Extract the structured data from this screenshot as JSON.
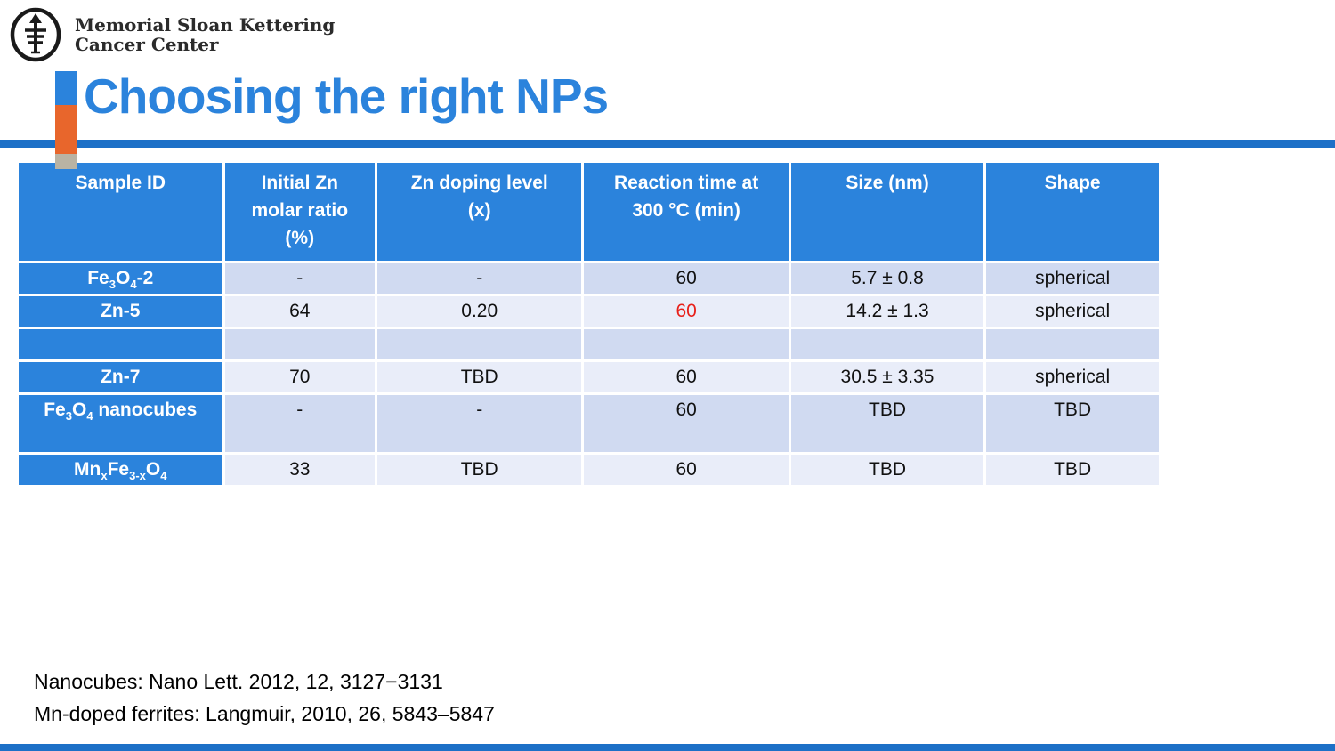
{
  "slide": {
    "logo": {
      "line1": "Memorial Sloan Kettering",
      "line2": "Cancer Center"
    },
    "title": "Choosing the right NPs",
    "colors": {
      "theme_blue": "#2b83dc",
      "rule_blue": "#1d70c7",
      "accent_orange": "#e8662c",
      "accent_gray": "#b9b3a4",
      "row_dark": "#d0daf1",
      "row_light": "#e9edf9",
      "highlight_red": "#e8201a",
      "text_black": "#111111"
    }
  },
  "table": {
    "headers": [
      {
        "lines": [
          "Sample ID"
        ]
      },
      {
        "lines": [
          "Initial Zn",
          "molar ratio",
          "(%)"
        ]
      },
      {
        "lines": [
          "Zn doping level",
          "(x)"
        ]
      },
      {
        "lines": [
          "Reaction time at",
          "300 °C (min)"
        ]
      },
      {
        "lines": [
          "Size (nm)"
        ]
      },
      {
        "lines": [
          "Shape"
        ]
      }
    ],
    "rows": [
      {
        "sample_parts": [
          {
            "t": "Fe"
          },
          {
            "t": "3",
            "sub": true
          },
          {
            "t": "O"
          },
          {
            "t": "4",
            "sub": true
          },
          {
            "t": "-2"
          }
        ],
        "initial_zn": "-",
        "doping": "-",
        "time": "60",
        "time_red": false,
        "size": "5.7 ± 0.8",
        "shape": "spherical",
        "band": "dark",
        "tall": false
      },
      {
        "sample_parts": [
          {
            "t": "Zn-5"
          }
        ],
        "initial_zn": "64",
        "doping": "0.20",
        "time": "60",
        "time_red": true,
        "size": "14.2 ± 1.3",
        "shape": "spherical",
        "band": "light",
        "tall": false
      },
      {
        "sample_parts": [],
        "initial_zn": "",
        "doping": "",
        "time": "",
        "time_red": false,
        "size": "",
        "shape": "",
        "band": "dark",
        "tall": false
      },
      {
        "sample_parts": [
          {
            "t": "Zn-7"
          }
        ],
        "initial_zn": "70",
        "doping": "TBD",
        "time": "60",
        "time_red": false,
        "size": "30.5 ± 3.35",
        "shape": "spherical",
        "band": "light",
        "tall": false
      },
      {
        "sample_parts": [
          {
            "t": "Fe"
          },
          {
            "t": "3",
            "sub": true
          },
          {
            "t": "O"
          },
          {
            "t": "4",
            "sub": true
          },
          {
            "t": " nanocubes"
          }
        ],
        "initial_zn": "-",
        "doping": "-",
        "time": "60",
        "time_red": false,
        "size": "TBD",
        "shape": "TBD",
        "band": "dark",
        "tall": true
      },
      {
        "sample_parts": [
          {
            "t": "Mn"
          },
          {
            "t": "x",
            "sub": true
          },
          {
            "t": "Fe"
          },
          {
            "t": "3-x",
            "sub": true
          },
          {
            "t": "O"
          },
          {
            "t": "4",
            "sub": true
          }
        ],
        "initial_zn": "33",
        "doping": "TBD",
        "time": "60",
        "time_red": false,
        "size": "TBD",
        "shape": "TBD",
        "band": "light",
        "tall": false
      }
    ]
  },
  "footnotes": [
    "Nanocubes: Nano Lett. 2012, 12, 3127−3131",
    "Mn-doped ferrites: Langmuir, 2010, 26, 5843–5847"
  ]
}
